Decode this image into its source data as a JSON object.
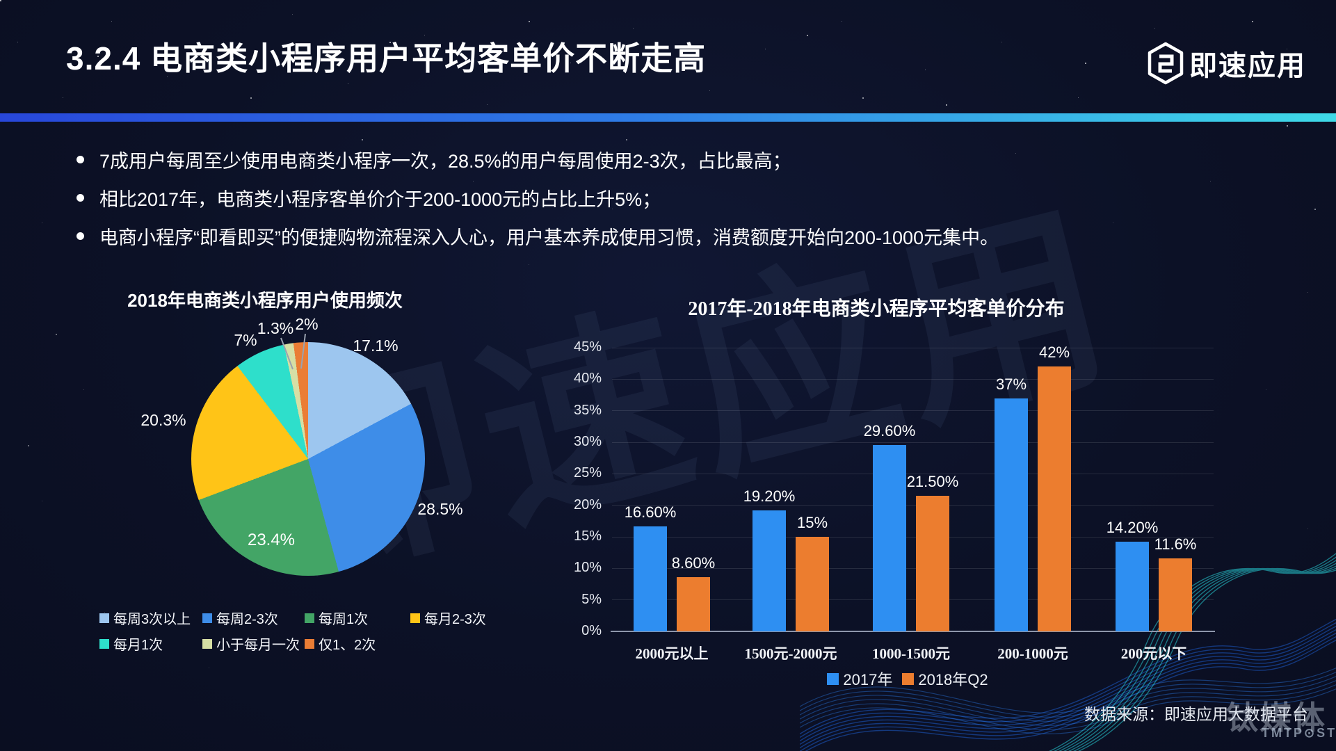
{
  "slide": {
    "title": "3.2.4  电商类小程序用户平均客单价不断走高",
    "logo": {
      "text": "即速应用"
    },
    "bullets": [
      "7成用户每周至少使用电商类小程序一次，28.5%的用户每周使用2-3次，占比最高；",
      "相比2017年，电商类小程序客单价介于200-1000元的占比上升5%；",
      "电商小程序“即看即买”的便捷购物流程深入人心，用户基本养成使用习惯，消费额度开始向200-1000元集中。"
    ],
    "source": "数据来源：即速应用大数据平台",
    "watermarks": {
      "center": "即速应用",
      "corner_cn": "钛媒体",
      "corner_en": "TMTP⊙ST"
    },
    "accent_gradient": [
      "#2847DA",
      "#2E7DE6",
      "#3FDBE8"
    ]
  },
  "chart_data": [
    {
      "type": "pie",
      "title": "2018年电商类小程序用户使用频次",
      "labels": [
        "每周3次以上",
        "每周2-3次",
        "每周1次",
        "每月2-3次",
        "每月1次",
        "小于每月一次",
        "仅1、2次"
      ],
      "values": [
        17.1,
        28.5,
        23.4,
        20.3,
        7,
        1.3,
        2
      ],
      "value_labels": [
        "17.1%",
        "28.5%",
        "23.4%",
        "20.3%",
        "7%",
        "1.3%",
        "2%"
      ],
      "colors": [
        "#9DC6EF",
        "#3E8DE8",
        "#43A566",
        "#FFC417",
        "#2EDFCB",
        "#D6DFA5",
        "#EA7D35"
      ],
      "legend_position": "bottom",
      "start_angle": "top-clockwise"
    },
    {
      "type": "bar",
      "title": "2017年-2018年电商类小程序平均客单价分布",
      "categories": [
        "2000元以上",
        "1500元-2000元",
        "1000-1500元",
        "200-1000元",
        "200元以下"
      ],
      "series": [
        {
          "name": "2017年",
          "color": "#2E8FF2",
          "values": [
            16.6,
            19.2,
            29.6,
            37,
            14.2
          ],
          "value_labels": [
            "16.60%",
            "19.20%",
            "29.60%",
            "37%",
            "14.20%"
          ]
        },
        {
          "name": "2018年Q2",
          "color": "#EC7D2F",
          "values": [
            8.6,
            15,
            21.5,
            42,
            11.6
          ],
          "value_labels": [
            "8.60%",
            "15%",
            "21.50%",
            "42%",
            "11.6%"
          ]
        }
      ],
      "ylabel": "",
      "ylim": [
        0,
        45
      ],
      "yticks": [
        "0%",
        "5%",
        "10%",
        "15%",
        "20%",
        "25%",
        "30%",
        "35%",
        "40%",
        "45%"
      ],
      "grid": true,
      "legend_position": "bottom"
    }
  ]
}
